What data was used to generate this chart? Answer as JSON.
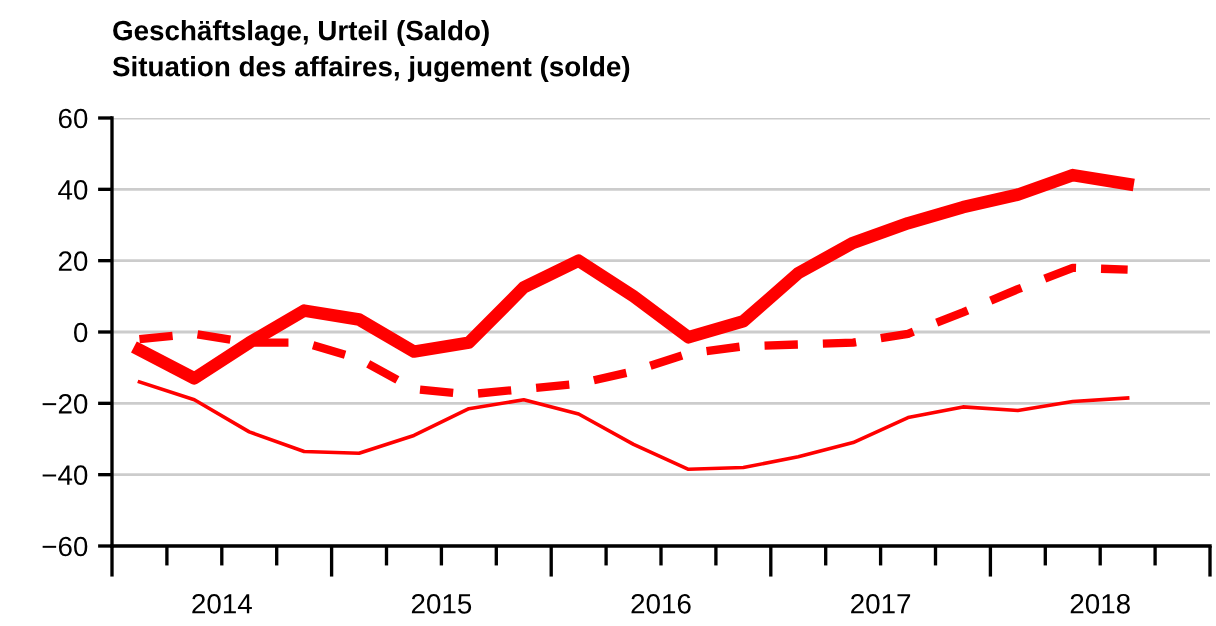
{
  "chart_data": {
    "type": "line",
    "title": "Geschäftslage, Urteil (Saldo)",
    "subtitle": "Situation des affaires, jugement (solde)",
    "x": [
      2014.125,
      2014.375,
      2014.625,
      2014.875,
      2015.125,
      2015.375,
      2015.625,
      2015.875,
      2016.125,
      2016.375,
      2016.625,
      2016.875,
      2017.125,
      2017.375,
      2017.625,
      2017.875,
      2018.125,
      2018.375,
      2018.625
    ],
    "series": [
      {
        "color": "#ff0000",
        "line_style": "solid",
        "values": [
          -5,
          -13,
          -3,
          6,
          3.5,
          -5.5,
          -3,
          12.5,
          20,
          10,
          -1.5,
          3,
          16.5,
          25,
          30.5,
          35,
          38.5,
          44,
          41.5
        ]
      },
      {
        "color": "#ff0000",
        "line_style": "dashed",
        "values": [
          -2,
          -0.5,
          -3,
          -3,
          -7.5,
          -16,
          -17.5,
          -16,
          -14.5,
          -11,
          -6,
          -4,
          -3.5,
          -3,
          -0.5,
          5.5,
          12,
          18,
          17.5
        ]
      },
      {
        "color": "#ff0000",
        "line_style": "solid",
        "values": [
          -14,
          -19,
          -28,
          -33.5,
          -34,
          -29,
          -21.5,
          -19,
          -23,
          -31.5,
          -38.5,
          -38,
          -35,
          -31,
          -24,
          -21,
          -22,
          -19.5,
          -18.5
        ]
      }
    ],
    "xlim": [
      2014,
      2019
    ],
    "xticks": [
      {
        "value": 2014,
        "label": null
      },
      {
        "value": 2014.25,
        "label": null
      },
      {
        "value": 2014.5,
        "label": "2014"
      },
      {
        "value": 2014.75,
        "label": null
      },
      {
        "value": 2015,
        "label": null
      },
      {
        "value": 2015.25,
        "label": null
      },
      {
        "value": 2015.5,
        "label": "2015"
      },
      {
        "value": 2015.75,
        "label": null
      },
      {
        "value": 2016,
        "label": null
      },
      {
        "value": 2016.25,
        "label": null
      },
      {
        "value": 2016.5,
        "label": "2016"
      },
      {
        "value": 2016.75,
        "label": null
      },
      {
        "value": 2017,
        "label": null
      },
      {
        "value": 2017.25,
        "label": null
      },
      {
        "value": 2017.5,
        "label": "2017"
      },
      {
        "value": 2017.75,
        "label": null
      },
      {
        "value": 2018,
        "label": null
      },
      {
        "value": 2018.25,
        "label": null
      },
      {
        "value": 2018.5,
        "label": "2018"
      },
      {
        "value": 2018.75,
        "label": null
      },
      {
        "value": 2019,
        "label": null
      }
    ],
    "ylim": [
      -60,
      60
    ],
    "yticks": [
      -60,
      -40,
      -20,
      0,
      20,
      40,
      60
    ],
    "grid": "y",
    "marker": "none"
  }
}
